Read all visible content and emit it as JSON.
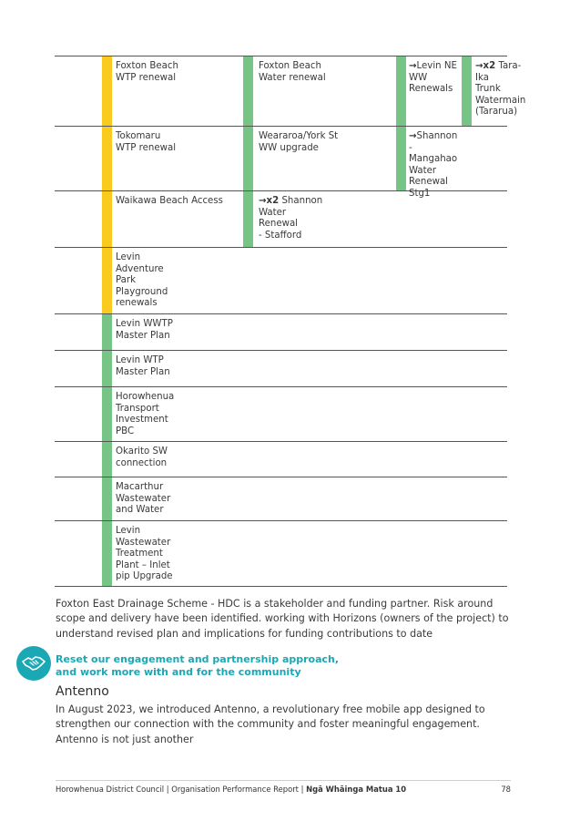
{
  "colors": {
    "yellow": "#f9cb1f",
    "green": "#76c587",
    "teal": "#1aa8b5"
  },
  "table": {
    "rows": [
      {
        "c2": "Foxton Beach\nWTP renewal",
        "c2_bar": "yellow",
        "c3": "Foxton Beach\nWater renewal",
        "c3_bar": "green",
        "c4_arrow": "→",
        "c4": "Levin NE\nWW\nRenewals",
        "c4_bar": "green",
        "c5_arrow": "→x2",
        "c5": " Tara-\nIka\nTrunk\nWatermain\n (Tararua)",
        "c5_bar": "green"
      },
      {
        "c2": "Tokomaru\nWTP renewal",
        "c2_bar": "yellow",
        "c3": "Weararoa/York St\nWW upgrade",
        "c3_bar": "green",
        "c4_arrow": "→",
        "c4": "Shannon\n-Mangahao\nWater\nRenewal\n Stg1",
        "c4_bar": "green"
      },
      {
        "c2": "Waikawa Beach Access",
        "c2_bar": "yellow",
        "c3_arrow": "→x2",
        "c3": " Shannon\nWater\nRenewal\n- Stafford",
        "c3_bar": "green"
      },
      {
        "c2": "Levin\nAdventure\nPark\nPlayground\n renewals",
        "c2_bar": "yellow"
      },
      {
        "c2": "Levin WWTP\nMaster Plan",
        "c2_bar": "green"
      },
      {
        "c2": "Levin WTP\nMaster Plan",
        "c2_bar": "green"
      },
      {
        "c2": "Horowhenua\nTransport\nInvestment\nPBC",
        "c2_bar": "green"
      },
      {
        "c2": "Okarito  SW\nconnection",
        "c2_bar": "green"
      },
      {
        "c2": "Macarthur\nWastewater\nand Water",
        "c2_bar": "green"
      },
      {
        "c2": "Levin\nWastewater\nTreatment\nPlant – Inlet\npip Upgrade",
        "c2_bar": "green"
      }
    ]
  },
  "para1": "Foxton East Drainage Scheme - HDC is a stakeholder and funding partner. Risk around scope and delivery have been identified. working with Horizons (owners of the project)  to understand revised plan and implications for funding contributions to date",
  "section": {
    "icon": "handshake-icon",
    "title": " Reset our engagement and partnership approach,\nand work more with and for the community"
  },
  "heading": "Antenno",
  "para2": "In August 2023, we introduced Antenno, a revolutionary free mobile app designed to strengthen our connection with the community and foster meaningful engagement. Antenno is not just another",
  "footer": {
    "text": "Horowhenua District Council | Organisation Performance Report | ",
    "bold": "Ngā Whāinga Matua 10",
    "page": "78"
  }
}
